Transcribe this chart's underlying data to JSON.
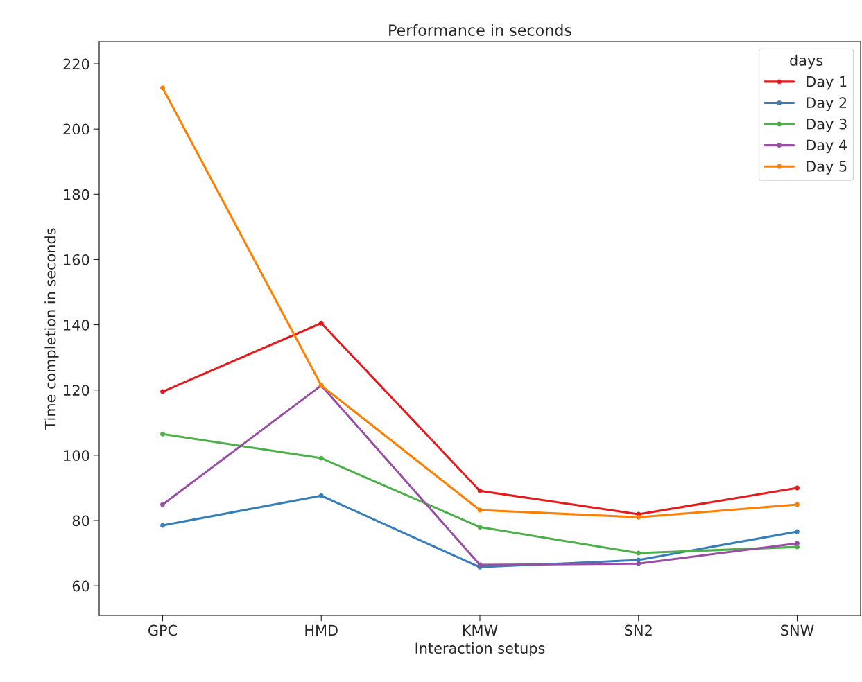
{
  "chart_data": {
    "type": "line",
    "title": "Performance in seconds",
    "xlabel": "Interaction setups",
    "ylabel": "Time completion in seconds",
    "legend_title": "days",
    "categories": [
      "GPC",
      "HMD",
      "KMW",
      "SN2",
      "SNW"
    ],
    "series": [
      {
        "name": "Day 1",
        "color": "#e41a1c",
        "values": [
          119.5,
          140.5,
          89.1,
          81.9,
          90.0
        ]
      },
      {
        "name": "Day 2",
        "color": "#377eb8",
        "values": [
          78.5,
          87.6,
          65.7,
          67.9,
          76.6
        ]
      },
      {
        "name": "Day 3",
        "color": "#4daf4a",
        "values": [
          106.5,
          99.1,
          78.0,
          70.0,
          71.9
        ]
      },
      {
        "name": "Day 4",
        "color": "#984ea3",
        "values": [
          84.9,
          121.4,
          66.4,
          66.8,
          73.0
        ]
      },
      {
        "name": "Day 5",
        "color": "#ff7f00",
        "values": [
          212.6,
          121.4,
          83.2,
          81.0,
          84.9
        ]
      }
    ],
    "ylim": [
      50.9,
      226.8
    ],
    "yticks": [
      60,
      80,
      100,
      120,
      140,
      160,
      180,
      200,
      220
    ],
    "marker": "circle",
    "line_style": "solid",
    "legend": "top right",
    "grid": false
  }
}
